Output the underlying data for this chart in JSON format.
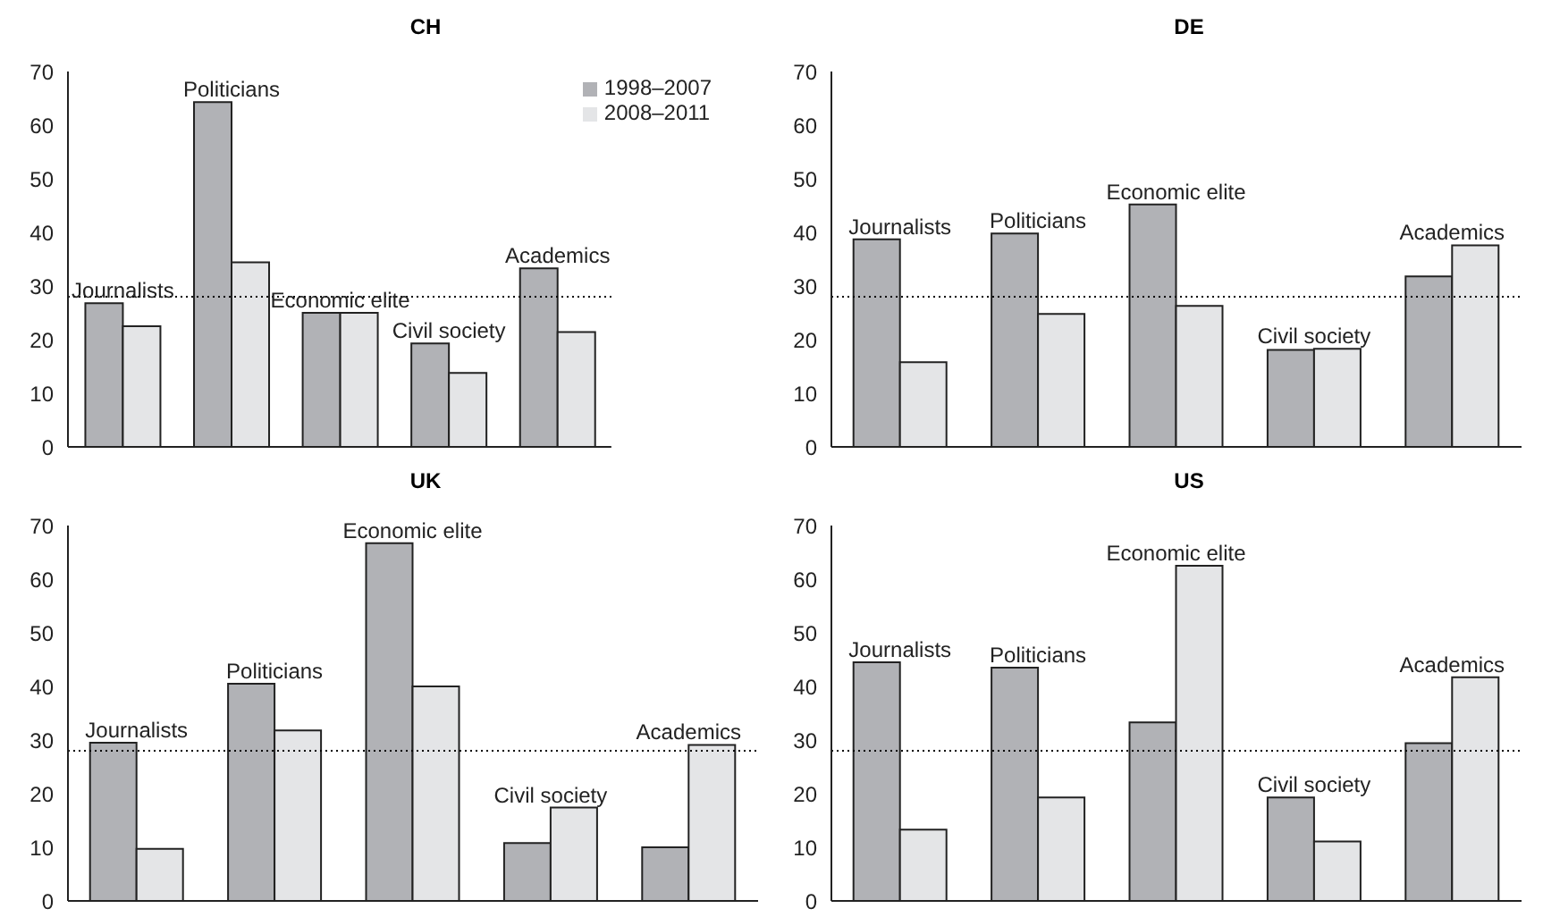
{
  "chart_data": [
    {
      "type": "bar",
      "title": "CH",
      "categories": [
        "Journalists",
        "Politicians",
        "Economic elite",
        "Civil society",
        "Academics"
      ],
      "series": [
        {
          "name": "1998–2007",
          "color": "#b1b2b6",
          "values": [
            26.8,
            64.3,
            25,
            19.3,
            33.3
          ]
        },
        {
          "name": "2008–2011",
          "color": "#e4e5e7",
          "values": [
            22.5,
            34.4,
            25,
            13.8,
            21.4
          ]
        }
      ],
      "ylim": [
        0,
        70
      ],
      "yticks": [
        0,
        10,
        20,
        30,
        40,
        50,
        60,
        70
      ],
      "grid": false,
      "legend": "top right",
      "tick_labels": "y",
      "ref_lines": [
        {
          "axis": "y",
          "value": 28,
          "color": "#000000",
          "line_style": "dotted"
        }
      ]
    },
    {
      "type": "bar",
      "title": "DE",
      "categories": [
        "Journalists",
        "Politicians",
        "Economic elite",
        "Civil society",
        "Academics"
      ],
      "series": [
        {
          "color": "#b1b2b6",
          "values": [
            38.7,
            39.8,
            45.2,
            18.1,
            31.8
          ]
        },
        {
          "color": "#e4e5e7",
          "values": [
            15.8,
            24.8,
            26.3,
            18.3,
            37.6
          ]
        }
      ],
      "ylim": [
        0,
        70
      ],
      "yticks": [
        0,
        10,
        20,
        30,
        40,
        50,
        60,
        70
      ],
      "grid": false,
      "legend": false,
      "tick_labels": "y",
      "ref_lines": [
        {
          "axis": "y",
          "value": 28,
          "color": "#000000",
          "line_style": "dotted"
        }
      ]
    },
    {
      "type": "bar",
      "title": "UK",
      "categories": [
        "Journalists",
        "Politicians",
        "Economic elite",
        "Civil society",
        "Academics"
      ],
      "series": [
        {
          "color": "#b1b2b6",
          "values": [
            29.5,
            40.5,
            66.7,
            10.8,
            10
          ]
        },
        {
          "color": "#e4e5e7",
          "values": [
            9.7,
            31.8,
            40,
            17.4,
            29.1
          ]
        }
      ],
      "ylim": [
        0,
        70
      ],
      "yticks": [
        0,
        10,
        20,
        30,
        40,
        50,
        60,
        70
      ],
      "grid": false,
      "legend": false,
      "tick_labels": "y",
      "ref_lines": [
        {
          "axis": "y",
          "value": 28,
          "color": "#000000",
          "line_style": "dotted"
        }
      ]
    },
    {
      "type": "bar",
      "title": "US",
      "categories": [
        "Journalists",
        "Politicians",
        "Economic elite",
        "Civil society",
        "Academics"
      ],
      "series": [
        {
          "color": "#b1b2b6",
          "values": [
            44.5,
            43.5,
            33.3,
            19.3,
            29.4
          ]
        },
        {
          "color": "#e4e5e7",
          "values": [
            13.3,
            19.3,
            62.5,
            11.1,
            41.7
          ]
        }
      ],
      "ylim": [
        0,
        70
      ],
      "yticks": [
        0,
        10,
        20,
        30,
        40,
        50,
        60,
        70
      ],
      "grid": false,
      "legend": false,
      "tick_labels": "y",
      "ref_lines": [
        {
          "axis": "y",
          "value": 28,
          "color": "#000000",
          "line_style": "dotted"
        }
      ]
    }
  ]
}
